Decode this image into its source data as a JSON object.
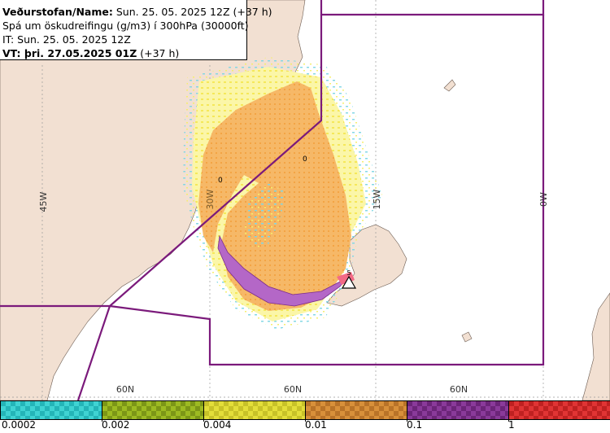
{
  "header": {
    "line1_label": "Veðurstofan/Name:",
    "line1_value": " Sun. 25. 05. 2025 12Z (+37 h)",
    "line2": "Spá um öskudreifingu (g/m3) í 300hPa (30000ft)",
    "line3": "IT: Sun. 25. 05. 2025 12Z",
    "line4_label": "VT: þri. 27.05.2025 01Z",
    "line4_value": " (+37 h)"
  },
  "grid_labels": {
    "lon_45w": "45W",
    "lon_30w": "30W",
    "lon_15w": "15W",
    "lon_0w": "0W",
    "lat_60n_a": "60N",
    "lat_60n_b": "60N",
    "lat_60n_c": "60N",
    "contour_a": "0",
    "contour_b": "0"
  },
  "legend": {
    "colors": [
      "#33cccc",
      "#8aa61a",
      "#d6d12a",
      "#c97f2f",
      "#7a2b8a",
      "#d42a2a"
    ],
    "labels": [
      "0.0002",
      "0.002",
      "0.004",
      "0.01",
      "0.1",
      "1"
    ]
  },
  "colors": {
    "land": "#f2e0d2",
    "sea": "#ffffff",
    "boundary": "#7b1a7b",
    "grid": "#888888",
    "ash_low": "#9ad8e8",
    "ash_mid": "#f5f07a",
    "ash_orange": "#f2a347",
    "ash_purple": "#b467c7"
  }
}
